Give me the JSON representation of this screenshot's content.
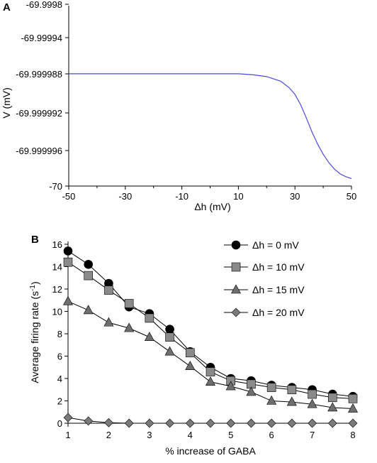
{
  "chart_data": [
    {
      "panel": "A",
      "type": "line",
      "xlabel": "Δh (mV)",
      "ylabel": "V (mV)",
      "xlim": [
        -50,
        50
      ],
      "ylim": [
        -70,
        -69.9998
      ],
      "x_ticks": [
        -50,
        -30,
        -10,
        10,
        30,
        50
      ],
      "y_ticks": [
        -70,
        -69.999996,
        -69.999992,
        -69.999988,
        -69.99994,
        -69.9998
      ],
      "y_tick_labels": [
        "-70",
        "-69.999996",
        "-69.999992",
        "-69.999988",
        "-69.99994",
        "-69.9998"
      ],
      "color": "#4a4ae0",
      "series": [
        {
          "x": [
            -50,
            -40,
            -30,
            -20,
            -10,
            0,
            10,
            15,
            20,
            25,
            28,
            30,
            32,
            34,
            36,
            38,
            40,
            42,
            44,
            46,
            48,
            50
          ],
          "y": [
            -69.999988,
            -69.999988,
            -69.999988,
            -69.999988,
            -69.999988,
            -69.999988,
            -69.999988,
            -69.9999881,
            -69.9999883,
            -69.9999888,
            -69.9999895,
            -69.9999902,
            -69.9999913,
            -69.9999927,
            -69.9999942,
            -69.9999955,
            -69.9999966,
            -69.9999975,
            -69.9999982,
            -69.9999987,
            -69.999999,
            -69.9999992
          ]
        }
      ]
    },
    {
      "panel": "B",
      "type": "line",
      "xlabel": "% increase of GABA",
      "ylabel": "Average firing rate (s",
      "ylabel_sup": "-1",
      "ylabel_end": ")",
      "xlim": [
        1,
        8
      ],
      "ylim": [
        0,
        16
      ],
      "x_ticks": [
        1,
        2,
        3,
        4,
        5,
        6,
        7,
        8
      ],
      "y_ticks": [
        0,
        2,
        4,
        6,
        8,
        10,
        12,
        14,
        16
      ],
      "x": [
        1,
        1.5,
        2,
        2.5,
        3,
        3.5,
        4,
        4.5,
        5,
        5.5,
        6,
        6.5,
        7,
        7.5,
        8
      ],
      "legend_position": "top-right",
      "series": [
        {
          "name": "Δh = 0 mV",
          "marker": "circle",
          "color": "#000000",
          "values": [
            15.4,
            14.2,
            12.5,
            10.4,
            9.8,
            8.4,
            6.4,
            5.0,
            4.0,
            3.8,
            3.4,
            3.2,
            3.0,
            2.6,
            2.4
          ]
        },
        {
          "name": "Δh = 10 mV",
          "marker": "square",
          "color": "#8a8a8a",
          "values": [
            14.4,
            13.2,
            11.9,
            10.7,
            9.4,
            7.7,
            6.3,
            4.6,
            3.8,
            3.5,
            3.2,
            3.0,
            2.6,
            2.3,
            2.2
          ]
        },
        {
          "name": "Δh = 15 mV",
          "marker": "triangle",
          "color": "#6e6e6e",
          "values": [
            10.9,
            10.1,
            9.0,
            8.5,
            7.7,
            6.4,
            5.1,
            3.7,
            3.3,
            2.8,
            2.0,
            1.9,
            1.7,
            1.4,
            1.3
          ]
        },
        {
          "name": "Δh = 20 mV",
          "marker": "diamond",
          "color": "#7a7a7a",
          "values": [
            0.5,
            0.2,
            0.05,
            0,
            0,
            0,
            0,
            0,
            0,
            0,
            0,
            0,
            0,
            0,
            0
          ]
        }
      ]
    }
  ]
}
